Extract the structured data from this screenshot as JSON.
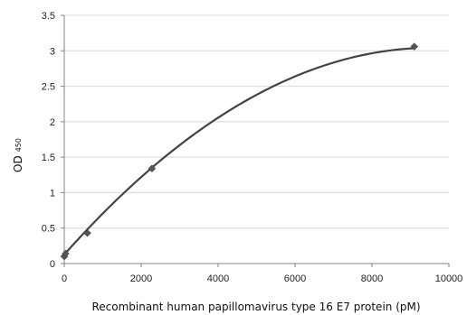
{
  "chart_data": {
    "type": "scatter",
    "title": "",
    "xlabel": "Recombinant human papillomavirus type 16 E7 protein (pM)",
    "ylabel": {
      "main": "OD",
      "subscript": "450"
    },
    "xlim": [
      0,
      10000
    ],
    "ylim": [
      0,
      3.5
    ],
    "x_ticks": [
      "0",
      "2000",
      "4000",
      "6000",
      "8000",
      "10000"
    ],
    "y_ticks": [
      "0",
      "0.5",
      "1",
      "1.5",
      "2",
      "2.5",
      "3",
      "3.5"
    ],
    "grid": "horizontal",
    "legend": "none",
    "points": [
      {
        "x": 0,
        "y": 0.1
      },
      {
        "x": 35,
        "y": 0.14
      },
      {
        "x": 600,
        "y": 0.43
      },
      {
        "x": 2280,
        "y": 1.34
      },
      {
        "x": 9100,
        "y": 3.06
      }
    ],
    "trendline": {
      "kind": "polynomial-2",
      "coefficients": [
        0.127,
        0.00061,
        -3.19e-08
      ]
    },
    "colors": {
      "marker": "#555555",
      "line": "#444444",
      "grid": "#d9d9d9",
      "axis": "#868686"
    }
  }
}
